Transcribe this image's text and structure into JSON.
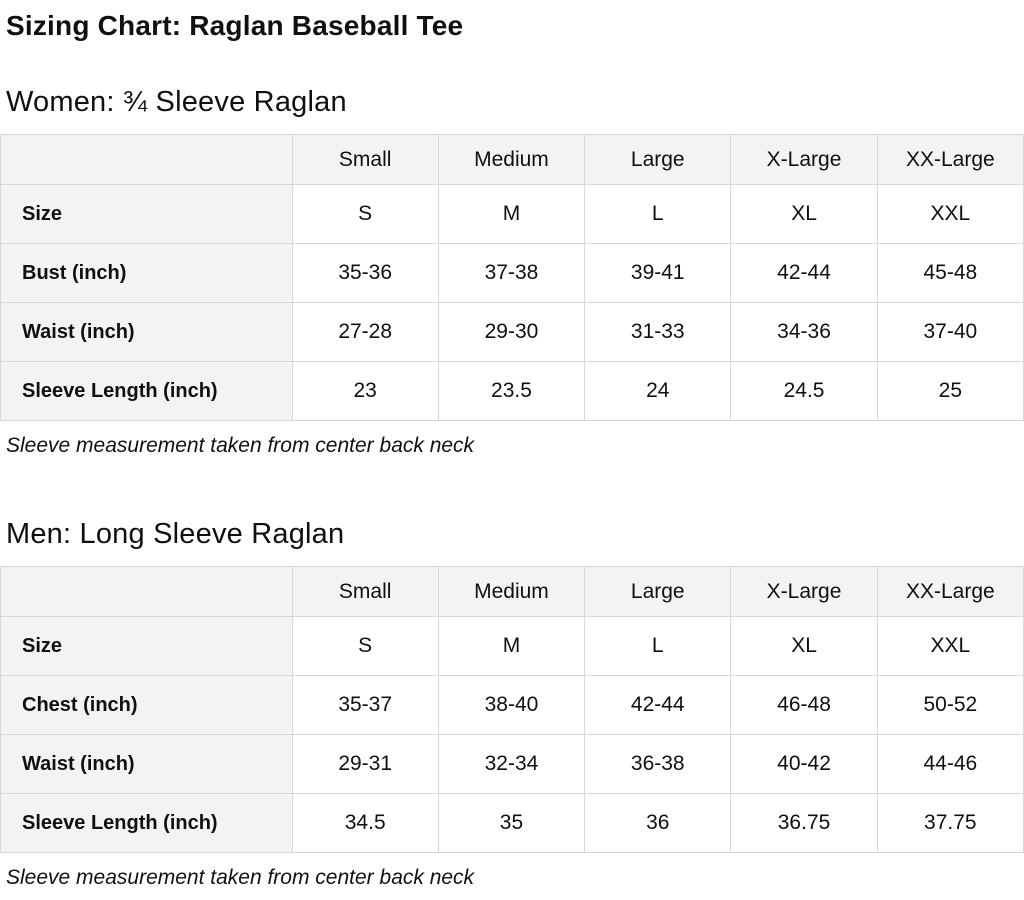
{
  "page": {
    "title": "Sizing Chart: Raglan Baseball Tee"
  },
  "colors": {
    "text": "#0f1111",
    "table_border": "#d5d9d9",
    "header_background": "#f3f3f3",
    "page_background": "#ffffff"
  },
  "chart_data": [
    {
      "type": "table",
      "title": "Women: ¾ Sleeve Raglan",
      "columns": [
        "Small",
        "Medium",
        "Large",
        "X-Large",
        "XX-Large"
      ],
      "rows": [
        {
          "label": "Size",
          "values": [
            "S",
            "M",
            "L",
            "XL",
            "XXL"
          ]
        },
        {
          "label": "Bust (inch)",
          "values": [
            "35-36",
            "37-38",
            "39-41",
            "42-44",
            "45-48"
          ]
        },
        {
          "label": "Waist (inch)",
          "values": [
            "27-28",
            "29-30",
            "31-33",
            "34-36",
            "37-40"
          ]
        },
        {
          "label": "Sleeve Length (inch)",
          "values": [
            "23",
            "23.5",
            "24",
            "24.5",
            "25"
          ]
        }
      ],
      "footnote": "Sleeve measurement taken from center back neck"
    },
    {
      "type": "table",
      "title": "Men: Long Sleeve Raglan",
      "columns": [
        "Small",
        "Medium",
        "Large",
        "X-Large",
        "XX-Large"
      ],
      "rows": [
        {
          "label": "Size",
          "values": [
            "S",
            "M",
            "L",
            "XL",
            "XXL"
          ]
        },
        {
          "label": "Chest (inch)",
          "values": [
            "35-37",
            "38-40",
            "42-44",
            "46-48",
            "50-52"
          ]
        },
        {
          "label": "Waist (inch)",
          "values": [
            "29-31",
            "32-34",
            "36-38",
            "40-42",
            "44-46"
          ]
        },
        {
          "label": "Sleeve Length (inch)",
          "values": [
            "34.5",
            "35",
            "36",
            "36.75",
            "37.75"
          ]
        }
      ],
      "footnote": "Sleeve measurement taken from center back neck"
    }
  ]
}
